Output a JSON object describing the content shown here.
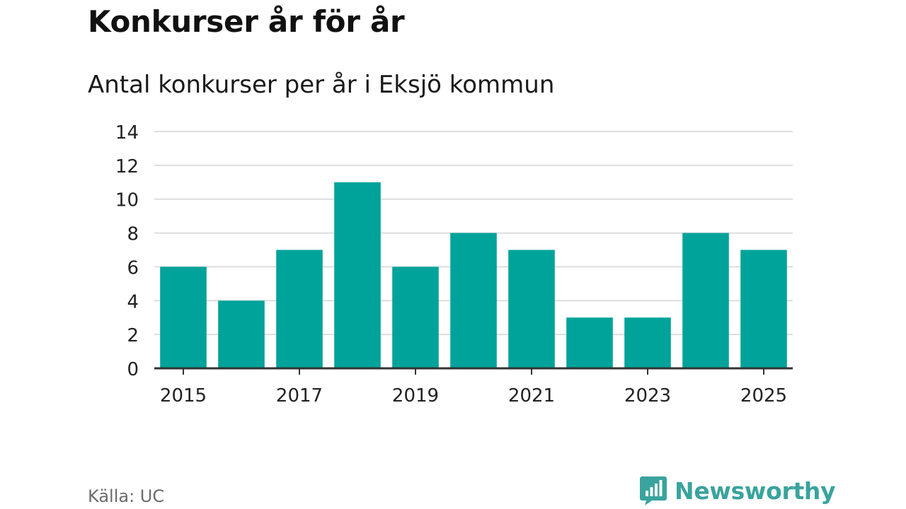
{
  "header": {
    "title": "Konkurser år för år",
    "subtitle": "Antal konkurser per år i Eksjö kommun"
  },
  "footer": {
    "source": "Källa: UC",
    "brand": "Newsworthy"
  },
  "colors": {
    "bar": "#00a39a",
    "gridline": "#dddddd",
    "axis": "#333333",
    "brand": "#3aa39d",
    "source_text": "#6b6b6b"
  },
  "chart_data": {
    "type": "bar",
    "categories": [
      "2015",
      "2016",
      "2017",
      "2018",
      "2019",
      "2020",
      "2021",
      "2022",
      "2023",
      "2024",
      "2025"
    ],
    "values": [
      6,
      4,
      7,
      11,
      6,
      8,
      7,
      3,
      3,
      8,
      7
    ],
    "x_tick_labels": [
      "2015",
      "2017",
      "2019",
      "2021",
      "2023",
      "2025"
    ],
    "y_ticks": [
      0,
      2,
      4,
      6,
      8,
      10,
      12,
      14
    ],
    "ylim": [
      0,
      14
    ],
    "title": "Konkurser år för år",
    "subtitle": "Antal konkurser per år i Eksjö kommun",
    "xlabel": "",
    "ylabel": "",
    "grid": true,
    "legend": "none"
  }
}
